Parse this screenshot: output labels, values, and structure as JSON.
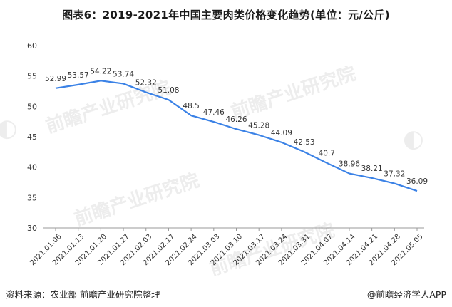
{
  "title": "图表6：2019-2021年中国主要肉类价格变化趋势(单位：元/公斤)",
  "source": "资料来源：农业部 前瞻产业研究院整理",
  "brand": "@前瞻经济学人APP",
  "watermark": "前瞻产业研究院",
  "colors": {
    "line": "#3b82e6",
    "axis": "#999999",
    "text": "#333333"
  },
  "chart_data": {
    "type": "line",
    "categories": [
      "2021.01.06",
      "2021.01.13",
      "2021.01.20",
      "2021.01.27",
      "2021.02.03",
      "2021.02.17",
      "2021.02.24",
      "2021.03.03",
      "2021.03.10",
      "2021.03.17",
      "2021.03.24",
      "2021.03.31",
      "2021.04.07",
      "2021.04.14",
      "2021.04.21",
      "2021.04.28",
      "2021.05.05"
    ],
    "values": [
      52.99,
      53.57,
      54.22,
      53.74,
      52.32,
      51.08,
      48.5,
      47.46,
      46.26,
      45.28,
      44.09,
      42.53,
      40.7,
      38.96,
      38.21,
      37.32,
      36.09
    ],
    "value_labels": [
      "52.99",
      "53.57",
      "54.22",
      "53.74",
      "52.32",
      "51.08",
      "48.5",
      "47.46",
      "46.26",
      "45.28",
      "44.09",
      "42.53",
      "40.7",
      "38.96",
      "38.21",
      "37.32",
      "36.09"
    ],
    "ylim": [
      30,
      60
    ],
    "yticks": [
      "30",
      "35",
      "40",
      "45",
      "50",
      "55",
      "60"
    ],
    "grid": false,
    "legend": "none"
  }
}
